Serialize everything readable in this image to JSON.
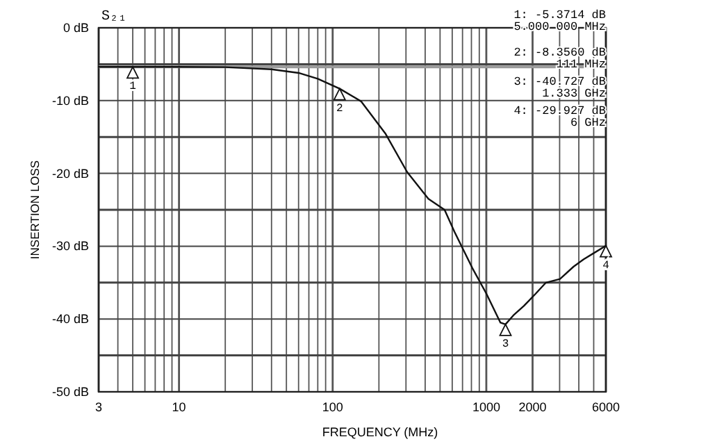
{
  "chart_data": {
    "type": "line",
    "title": "S₂₁",
    "xlabel": "FREQUENCY (MHz)",
    "ylabel": "INSERTION LOSS",
    "log": "x",
    "x": [
      3,
      5,
      10,
      20,
      40,
      60,
      80,
      111,
      153,
      220,
      305,
      420,
      535,
      620,
      811,
      1000,
      1236,
      1333,
      1500,
      1755,
      2100,
      2443,
      3015,
      3700,
      4300,
      4960,
      6000
    ],
    "series": [
      {
        "color": "#111111",
        "values": [
          -5.37,
          -5.37,
          -5.37,
          -5.4,
          -5.7,
          -6.2,
          -7,
          -8.36,
          -10.1,
          -14.5,
          -19.8,
          -23.5,
          -25,
          -28,
          -33,
          -36.5,
          -40.5,
          -40.73,
          -39.5,
          -38.2,
          -36.5,
          -35,
          -34.5,
          -32.8,
          -31.8,
          -31,
          -29.93
        ]
      }
    ],
    "xlim": [
      3,
      6000
    ],
    "ylim": [
      -50,
      0
    ],
    "xticks": [
      3,
      {
        "value": 4,
        "label": null
      },
      {
        "value": 5,
        "label": null
      },
      {
        "value": 6,
        "label": null
      },
      {
        "value": 7,
        "label": null
      },
      {
        "value": 8,
        "label": null
      },
      {
        "value": 9,
        "label": null
      },
      10,
      {
        "value": 20,
        "label": null
      },
      {
        "value": 30,
        "label": null
      },
      {
        "value": 40,
        "label": null
      },
      {
        "value": 50,
        "label": null
      },
      {
        "value": 60,
        "label": null
      },
      {
        "value": 70,
        "label": null
      },
      {
        "value": 80,
        "label": null
      },
      {
        "value": 90,
        "label": null
      },
      100,
      {
        "value": 200,
        "label": null
      },
      {
        "value": 300,
        "label": null
      },
      {
        "value": 400,
        "label": null
      },
      {
        "value": 500,
        "label": null
      },
      {
        "value": 600,
        "label": null
      },
      {
        "value": 700,
        "label": null
      },
      {
        "value": 800,
        "label": null
      },
      {
        "value": 900,
        "label": null
      },
      1000,
      2000,
      {
        "value": 3000,
        "label": null
      },
      {
        "value": 4000,
        "label": null
      },
      {
        "value": 5000,
        "label": null
      },
      6000
    ],
    "yticks": [
      {
        "value": 0,
        "label": "0 dB"
      },
      {
        "value": -5,
        "label": null
      },
      {
        "value": -10,
        "label": "-10 dB"
      },
      {
        "value": -15,
        "label": null
      },
      {
        "value": -20,
        "label": "-20 dB"
      },
      {
        "value": -25,
        "label": null
      },
      {
        "value": -30,
        "label": "-30 dB"
      },
      {
        "value": -35,
        "label": null
      },
      {
        "value": -40,
        "label": "-40 dB"
      },
      {
        "value": -45,
        "label": null
      },
      {
        "value": -50,
        "label": "-50 dB"
      }
    ],
    "grid": true,
    "ref_lines": [
      {
        "axis": "y",
        "value": -5.3714,
        "color": "#999999"
      }
    ],
    "annotations": [
      {
        "text": "1",
        "x": 5,
        "y": -5.3714
      },
      {
        "text": "2",
        "x": 111,
        "y": -8.356
      },
      {
        "text": "3",
        "x": 1333,
        "y": -40.727
      },
      {
        "text": "4",
        "x": 6000,
        "y": -29.927
      },
      "1: -5.3714 dB",
      "5.000 000 MHz",
      "2: -8.3560 dB",
      "111 MHz",
      "3: -40.727 dB",
      "1.333 GHz",
      "4: -29.927 dB",
      "6 GHz"
    ]
  }
}
